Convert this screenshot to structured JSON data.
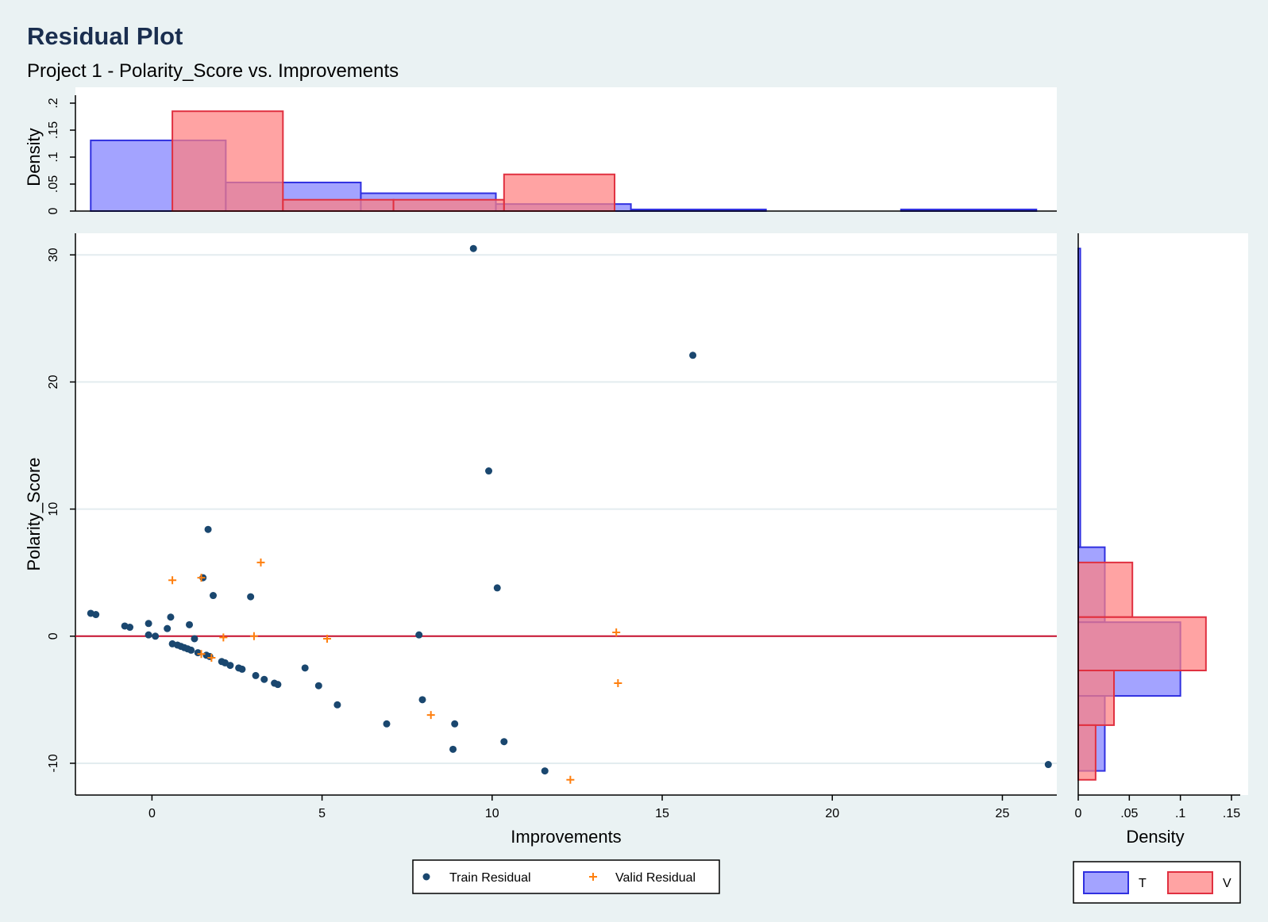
{
  "title": "Residual Plot",
  "subtitle": "Project 1 - Polarity_Score vs. Improvements",
  "colors": {
    "background": "#eaf2f3",
    "train_point": "#1a476f",
    "valid_point": "#ff7f0e",
    "zero_line": "#c8102e",
    "hist_T_fill": "#8080ff",
    "hist_T_stroke": "#3030e0",
    "hist_V_fill": "#ff8080",
    "hist_V_stroke": "#e03040"
  },
  "chart_data": [
    {
      "type": "scatter",
      "xlabel": "Improvements",
      "ylabel": "Polarity_Score",
      "xlim": [
        -2.25,
        26.6
      ],
      "ylim": [
        -12.5,
        31.7
      ],
      "xticks": [
        0,
        5,
        10,
        15,
        20,
        25
      ],
      "yticks": [
        -10,
        0,
        10,
        20,
        30
      ],
      "reference_line_y": 0,
      "grid": true,
      "legend_position": "bottom-center",
      "series": [
        {
          "name": "Train Residual",
          "marker": "circle",
          "points": [
            [
              -1.8,
              1.8
            ],
            [
              -1.65,
              1.7
            ],
            [
              -0.8,
              0.8
            ],
            [
              -0.65,
              0.7
            ],
            [
              -0.1,
              1.0
            ],
            [
              -0.1,
              0.1
            ],
            [
              0.1,
              0.0
            ],
            [
              0.45,
              0.6
            ],
            [
              0.55,
              1.5
            ],
            [
              0.6,
              -0.6
            ],
            [
              0.75,
              -0.7
            ],
            [
              0.85,
              -0.8
            ],
            [
              0.95,
              -0.9
            ],
            [
              1.05,
              -1.0
            ],
            [
              1.1,
              0.9
            ],
            [
              1.15,
              -1.1
            ],
            [
              1.25,
              -0.2
            ],
            [
              1.35,
              -1.3
            ],
            [
              1.5,
              4.6
            ],
            [
              1.6,
              -1.5
            ],
            [
              1.65,
              8.4
            ],
            [
              1.7,
              -1.6
            ],
            [
              1.8,
              3.2
            ],
            [
              2.05,
              -2.0
            ],
            [
              2.15,
              -2.1
            ],
            [
              2.3,
              -2.3
            ],
            [
              2.55,
              -2.5
            ],
            [
              2.65,
              -2.6
            ],
            [
              2.9,
              3.1
            ],
            [
              3.05,
              -3.1
            ],
            [
              3.3,
              -3.4
            ],
            [
              3.6,
              -3.7
            ],
            [
              3.7,
              -3.8
            ],
            [
              4.5,
              -2.5
            ],
            [
              4.9,
              -3.9
            ],
            [
              5.45,
              -5.4
            ],
            [
              6.9,
              -6.9
            ],
            [
              7.85,
              0.1
            ],
            [
              7.95,
              -5.0
            ],
            [
              8.85,
              -8.9
            ],
            [
              8.9,
              -6.9
            ],
            [
              9.45,
              30.5
            ],
            [
              9.9,
              13.0
            ],
            [
              10.15,
              3.8
            ],
            [
              10.35,
              -8.3
            ],
            [
              11.55,
              -10.6
            ],
            [
              15.9,
              22.1
            ],
            [
              26.35,
              -10.1
            ]
          ]
        },
        {
          "name": "Valid Residual",
          "marker": "plus",
          "points": [
            [
              0.6,
              4.4
            ],
            [
              1.45,
              4.6
            ],
            [
              1.45,
              -1.4
            ],
            [
              1.75,
              -1.7
            ],
            [
              2.1,
              -0.1
            ],
            [
              3.0,
              0.0
            ],
            [
              3.2,
              5.8
            ],
            [
              5.15,
              -0.2
            ],
            [
              8.2,
              -6.2
            ],
            [
              12.3,
              -11.3
            ],
            [
              13.65,
              0.3
            ],
            [
              13.7,
              -3.7
            ]
          ]
        }
      ]
    },
    {
      "type": "bar",
      "orientation": "vertical",
      "xlabel": "",
      "ylabel": "Density",
      "ylim": [
        0,
        0.2
      ],
      "yticks": [
        0,
        0.05,
        0.1,
        0.15,
        0.2
      ],
      "ytick_labels": [
        "0",
        ".05",
        ".1",
        ".15",
        ".2"
      ],
      "series": [
        {
          "name": "T",
          "bins": [
            {
              "x0": -1.8,
              "x1": 2.17,
              "density": 0.131
            },
            {
              "x0": 2.17,
              "x1": 6.14,
              "density": 0.053
            },
            {
              "x0": 6.14,
              "x1": 10.11,
              "density": 0.033
            },
            {
              "x0": 10.11,
              "x1": 14.08,
              "density": 0.013
            },
            {
              "x0": 14.08,
              "x1": 18.05,
              "density": 0.003
            },
            {
              "x0": 18.05,
              "x1": 22.02,
              "density": 0.0
            },
            {
              "x0": 22.02,
              "x1": 26.0,
              "density": 0.003
            }
          ]
        },
        {
          "name": "V",
          "bins": [
            {
              "x0": 0.6,
              "x1": 3.85,
              "density": 0.185
            },
            {
              "x0": 3.85,
              "x1": 7.1,
              "density": 0.021
            },
            {
              "x0": 7.1,
              "x1": 10.35,
              "density": 0.021
            },
            {
              "x0": 10.35,
              "x1": 13.6,
              "density": 0.068
            }
          ]
        }
      ]
    },
    {
      "type": "bar",
      "orientation": "horizontal",
      "xlabel": "Density",
      "ylabel": "",
      "xlim": [
        0,
        0.15
      ],
      "xticks": [
        0,
        0.05,
        0.1,
        0.15
      ],
      "xtick_labels": [
        "0",
        ".05",
        ".1",
        ".15"
      ],
      "series": [
        {
          "name": "T",
          "bins": [
            {
              "y0": 7.0,
              "y1": 30.5,
              "density": 0.002
            },
            {
              "y0": 1.1,
              "y1": 7.0,
              "density": 0.026
            },
            {
              "y0": -4.7,
              "y1": 1.1,
              "density": 0.1
            },
            {
              "y0": -10.6,
              "y1": -4.7,
              "density": 0.026
            }
          ]
        },
        {
          "name": "V",
          "bins": [
            {
              "y0": 1.5,
              "y1": 5.8,
              "density": 0.053
            },
            {
              "y0": -2.7,
              "y1": 1.5,
              "density": 0.125
            },
            {
              "y0": -7.0,
              "y1": -2.7,
              "density": 0.035
            },
            {
              "y0": -11.3,
              "y1": -7.0,
              "density": 0.017
            }
          ]
        }
      ]
    }
  ],
  "legend_main": {
    "train_label": "Train Residual",
    "valid_label": "Valid Residual"
  },
  "legend_hist": {
    "t_label": "T",
    "v_label": "V"
  }
}
